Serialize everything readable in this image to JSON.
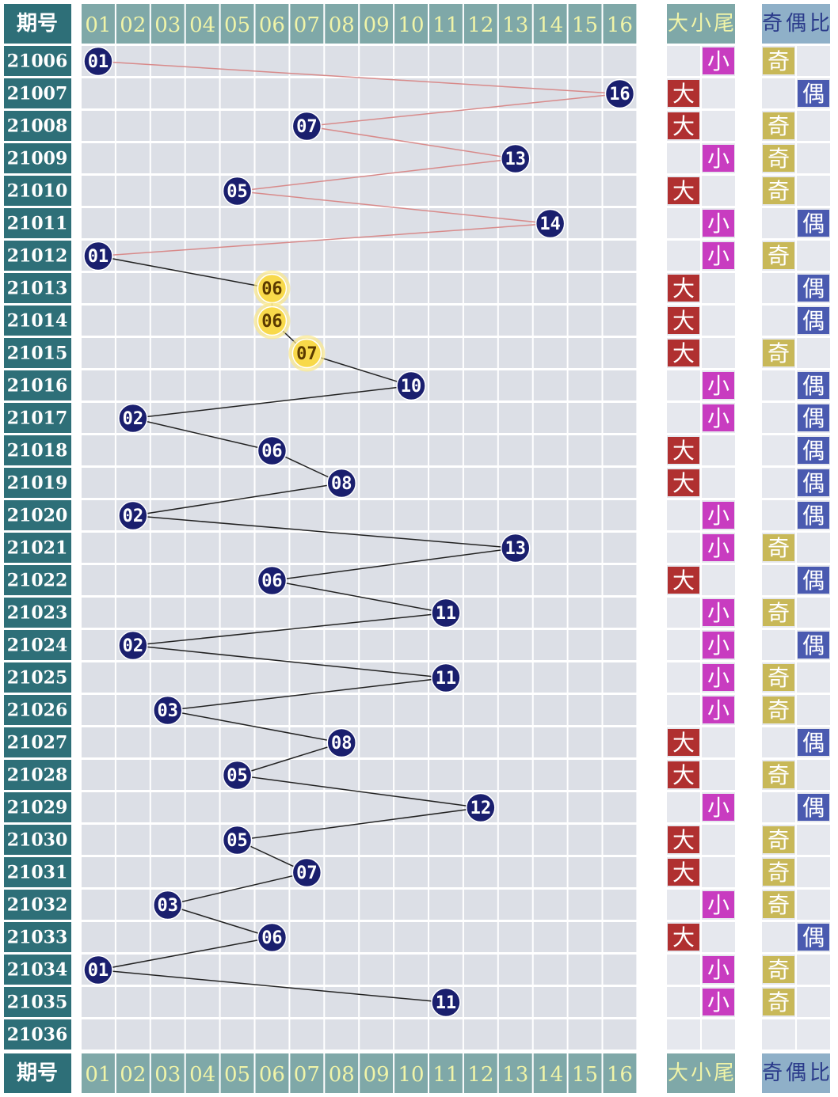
{
  "header": {
    "period": "期号",
    "numbers": [
      "01",
      "02",
      "03",
      "04",
      "05",
      "06",
      "07",
      "08",
      "09",
      "10",
      "11",
      "12",
      "13",
      "14",
      "15",
      "16"
    ],
    "size": "大小尾",
    "parity": "奇偶比"
  },
  "rows": [
    {
      "period": "21006",
      "number": "01",
      "size": "小",
      "parity": "奇",
      "color": "#1a1f6e",
      "line_color": "#d88a8a"
    },
    {
      "period": "21007",
      "number": "16",
      "size": "大",
      "parity": "偶",
      "color": "#1a1f6e",
      "line_color": "#d88a8a"
    },
    {
      "period": "21008",
      "number": "07",
      "size": "大",
      "parity": "奇",
      "color": "#1a1f6e",
      "line_color": "#d88a8a"
    },
    {
      "period": "21009",
      "number": "13",
      "size": "小",
      "parity": "奇",
      "color": "#1a1f6e",
      "line_color": "#d88a8a"
    },
    {
      "period": "21010",
      "number": "05",
      "size": "大",
      "parity": "奇",
      "color": "#1a1f6e",
      "line_color": "#d88a8a"
    },
    {
      "period": "21011",
      "number": "14",
      "size": "小",
      "parity": "偶",
      "color": "#1a1f6e",
      "line_color": "#d88a8a"
    },
    {
      "period": "21012",
      "number": "01",
      "size": "小",
      "parity": "奇",
      "color": "#1a1f6e",
      "line_color": "#222222"
    },
    {
      "period": "21013",
      "number": "06",
      "size": "大",
      "parity": "偶",
      "color": "#f8d94a",
      "line_color": "#222222"
    },
    {
      "period": "21014",
      "number": "06",
      "size": "大",
      "parity": "偶",
      "color": "#f8d94a",
      "line_color": "#222222"
    },
    {
      "period": "21015",
      "number": "07",
      "size": "大",
      "parity": "奇",
      "color": "#f8d94a",
      "line_color": "#222222"
    },
    {
      "period": "21016",
      "number": "10",
      "size": "小",
      "parity": "偶",
      "color": "#1a1f6e",
      "line_color": "#222222"
    },
    {
      "period": "21017",
      "number": "02",
      "size": "小",
      "parity": "偶",
      "color": "#1a1f6e",
      "line_color": "#222222"
    },
    {
      "period": "21018",
      "number": "06",
      "size": "大",
      "parity": "偶",
      "color": "#1a1f6e",
      "line_color": "#222222"
    },
    {
      "period": "21019",
      "number": "08",
      "size": "大",
      "parity": "偶",
      "color": "#1a1f6e",
      "line_color": "#222222"
    },
    {
      "period": "21020",
      "number": "02",
      "size": "小",
      "parity": "偶",
      "color": "#1a1f6e",
      "line_color": "#222222"
    },
    {
      "period": "21021",
      "number": "13",
      "size": "小",
      "parity": "奇",
      "color": "#1a1f6e",
      "line_color": "#222222"
    },
    {
      "period": "21022",
      "number": "06",
      "size": "大",
      "parity": "偶",
      "color": "#1a1f6e",
      "line_color": "#222222"
    },
    {
      "period": "21023",
      "number": "11",
      "size": "小",
      "parity": "奇",
      "color": "#1a1f6e",
      "line_color": "#222222"
    },
    {
      "period": "21024",
      "number": "02",
      "size": "小",
      "parity": "偶",
      "color": "#1a1f6e",
      "line_color": "#222222"
    },
    {
      "period": "21025",
      "number": "11",
      "size": "小",
      "parity": "奇",
      "color": "#1a1f6e",
      "line_color": "#222222"
    },
    {
      "period": "21026",
      "number": "03",
      "size": "小",
      "parity": "奇",
      "color": "#1a1f6e",
      "line_color": "#222222"
    },
    {
      "period": "21027",
      "number": "08",
      "size": "大",
      "parity": "偶",
      "color": "#1a1f6e",
      "line_color": "#222222"
    },
    {
      "period": "21028",
      "number": "05",
      "size": "大",
      "parity": "奇",
      "color": "#1a1f6e",
      "line_color": "#222222"
    },
    {
      "period": "21029",
      "number": "12",
      "size": "小",
      "parity": "偶",
      "color": "#1a1f6e",
      "line_color": "#222222"
    },
    {
      "period": "21030",
      "number": "05",
      "size": "大",
      "parity": "奇",
      "color": "#1a1f6e",
      "line_color": "#222222"
    },
    {
      "period": "21031",
      "number": "07",
      "size": "大",
      "parity": "奇",
      "color": "#1a1f6e",
      "line_color": "#222222"
    },
    {
      "period": "21032",
      "number": "03",
      "size": "小",
      "parity": "奇",
      "color": "#1a1f6e",
      "line_color": "#222222"
    },
    {
      "period": "21033",
      "number": "06",
      "size": "大",
      "parity": "偶",
      "color": "#1a1f6e",
      "line_color": "#222222"
    },
    {
      "period": "21034",
      "number": "01",
      "size": "小",
      "parity": "奇",
      "color": "#1a1f6e",
      "line_color": "#222222"
    },
    {
      "period": "21035",
      "number": "11",
      "size": "小",
      "parity": "奇",
      "color": "#1a1f6e",
      "line_color": "#222222"
    },
    {
      "period": "21036"
    }
  ]
}
